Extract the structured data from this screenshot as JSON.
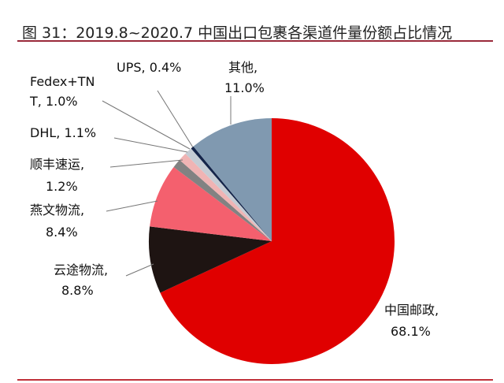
{
  "title": "图 31：2019.8~2020.7 中国出口包裹各渠道件量份额占比情况",
  "chart_data": {
    "type": "pie",
    "title": "图 31：2019.8~2020.7 中国出口包裹各渠道件量份额占比情况",
    "start": "12 o'clock, clockwise",
    "slices": [
      {
        "name": "中国邮政",
        "value": 68.1,
        "label": "68.1%",
        "color": "#e00000"
      },
      {
        "name": "云途物流",
        "value": 8.8,
        "label": "8.8%",
        "color": "#1e1412"
      },
      {
        "name": "燕文物流",
        "value": 8.4,
        "label": "8.4%",
        "color": "#f4606e"
      },
      {
        "name": "顺丰速运",
        "value": 1.2,
        "label": "1.2%",
        "color": "#828282"
      },
      {
        "name": "DHL",
        "value": 1.1,
        "label": "1.1%",
        "color": "#f0b4b4"
      },
      {
        "name": "Fedex+TNT",
        "value": 1.0,
        "label": "1.0%",
        "color": "#c4ccd4"
      },
      {
        "name": "UPS",
        "value": 0.4,
        "label": "0.4%",
        "color": "#14254a"
      },
      {
        "name": "其他",
        "value": 11.0,
        "label": "11.0%",
        "color": "#8099b0"
      }
    ],
    "labels": {
      "zgyz": [
        "中国邮政,",
        "68.1%"
      ],
      "yt": [
        "云途物流,",
        "8.8%"
      ],
      "yw": [
        "燕文物流,",
        "8.4%"
      ],
      "sf": [
        "顺丰速运,",
        "1.2%"
      ],
      "dhl": [
        "DHL, 1.1%"
      ],
      "fedex": [
        "Fedex+TN",
        "T, 1.0%"
      ],
      "ups": [
        "UPS, 0.4%"
      ],
      "qt": [
        "其他,",
        "11.0%"
      ]
    }
  }
}
